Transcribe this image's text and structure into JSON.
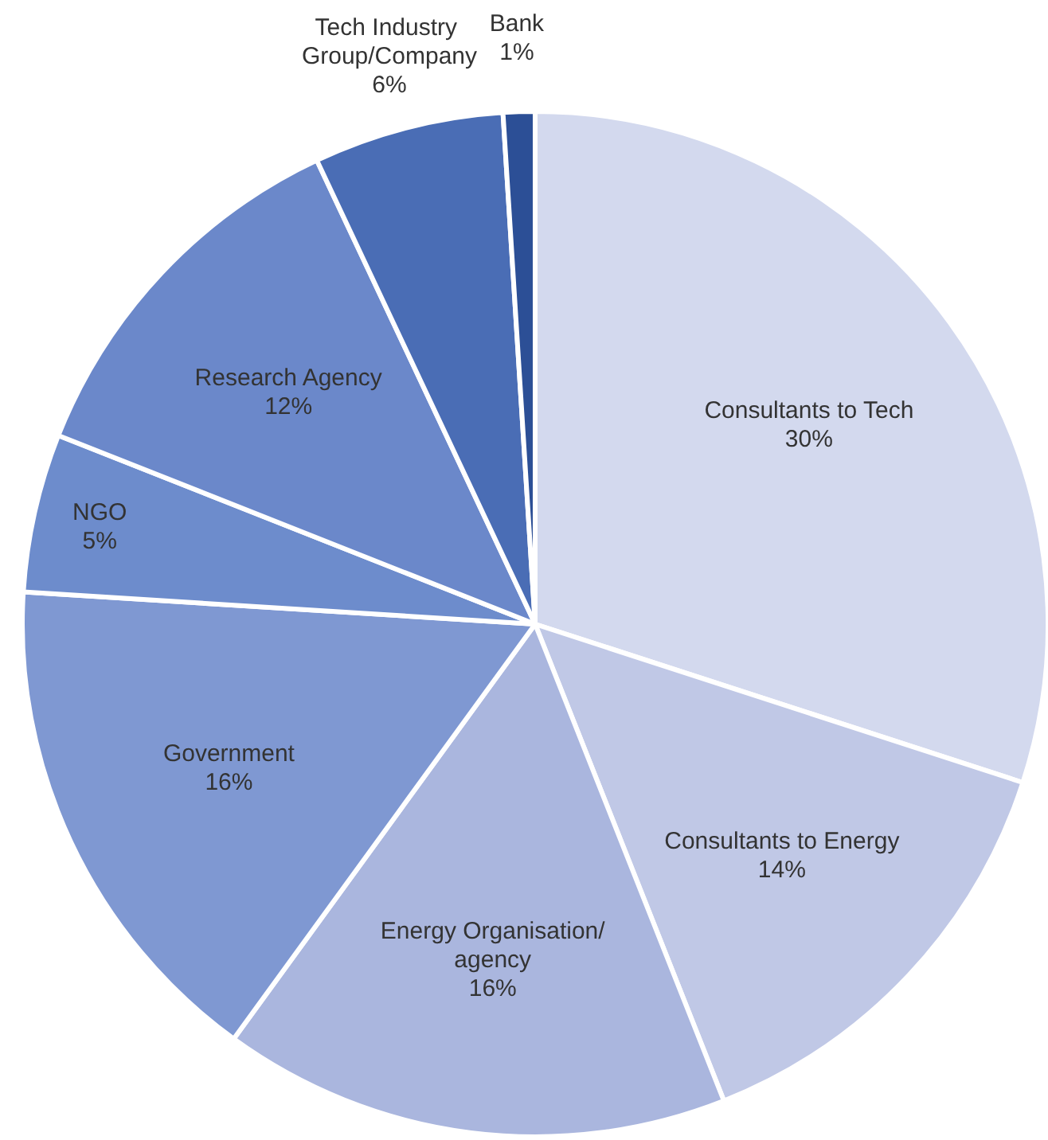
{
  "chart_data": {
    "type": "pie",
    "categories": [
      "Consultants to Tech",
      "Consultants to Energy",
      "Energy Organisation/agency",
      "Government",
      "NGO",
      "Research Agency",
      "Tech Industry Group/Company",
      "Bank"
    ],
    "values": [
      30,
      14,
      16,
      16,
      5,
      12,
      6,
      1
    ],
    "value_labels": [
      "30%",
      "14%",
      "16%",
      "16%",
      "5%",
      "12%",
      "6%",
      "1%"
    ],
    "colors": [
      "#d3d9ee",
      "#c0c8e6",
      "#aab6de",
      "#7f98d2",
      "#6d8ccc",
      "#6b88ca",
      "#4a6db5",
      "#2c4f96"
    ],
    "legend": false
  }
}
